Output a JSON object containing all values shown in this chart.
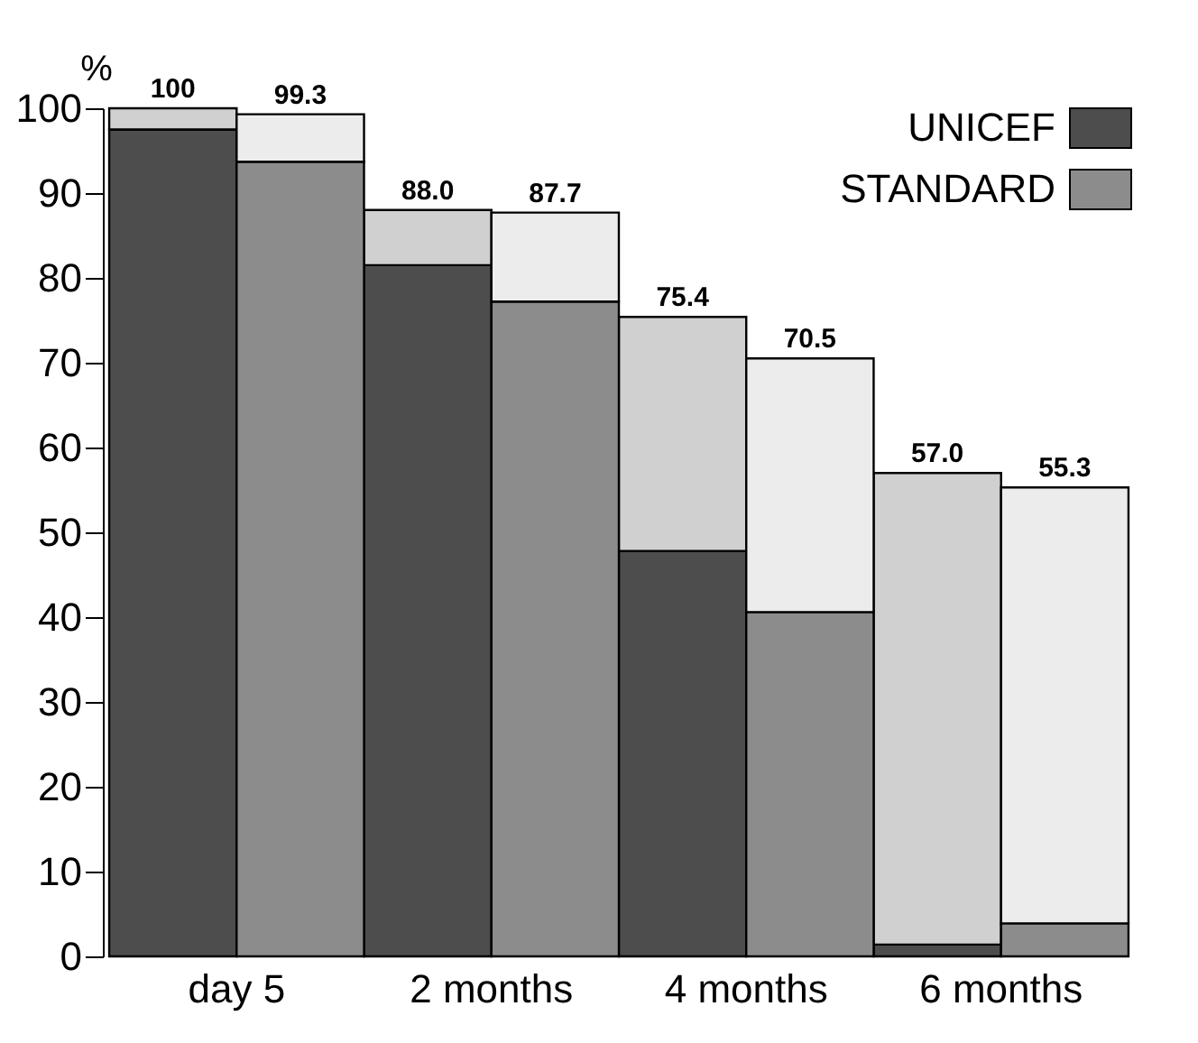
{
  "chart_data": {
    "type": "bar",
    "stacked": true,
    "ylabel": "%",
    "categories": [
      "day 5",
      null,
      "2 months",
      null,
      "4 months",
      null,
      "6 months",
      null
    ],
    "series": [
      {
        "name": "UNICEF",
        "color": "#4d4d4d",
        "values": [
          97.5,
          null,
          81.5,
          null,
          47.8,
          null,
          1.4,
          null
        ]
      },
      {
        "color": "#d0d0d0",
        "values": [
          2.5,
          null,
          6.5,
          null,
          27.6,
          null,
          55.6,
          null
        ]
      },
      {
        "name": "STANDARD",
        "color": "#8c8c8c",
        "values": [
          null,
          93.7,
          null,
          77.2,
          null,
          40.6,
          null,
          3.9
        ]
      },
      {
        "color": "#ececec",
        "values": [
          null,
          5.6,
          null,
          10.5,
          null,
          29.9,
          null,
          51.4
        ]
      }
    ],
    "totals": [
      "100",
      "99.3",
      "88.0",
      "87.7",
      "75.4",
      "70.5",
      "57.0",
      "55.3"
    ],
    "ylim": [
      0,
      100
    ],
    "yticks": [
      0,
      10,
      20,
      30,
      40,
      50,
      60,
      70,
      80,
      90,
      100
    ],
    "grid": false,
    "legend": "top right"
  }
}
